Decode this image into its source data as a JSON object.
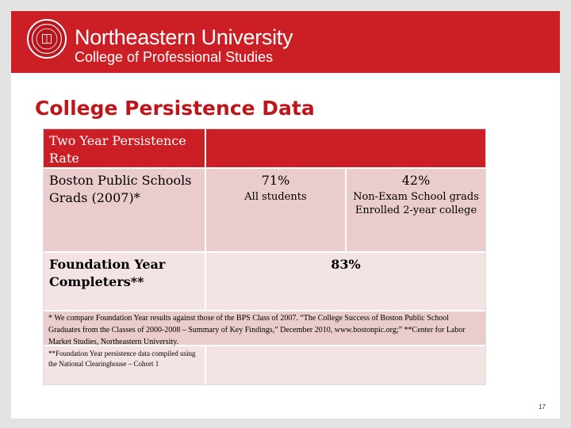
{
  "header": {
    "university": "Northeastern University",
    "college": "College of Professional Studies"
  },
  "title": "College Persistence Data",
  "table": {
    "header_label": "Two Year Persistence Rate",
    "row1": {
      "label": "Boston Public Schools Grads (2007)*",
      "col1_value": "71%",
      "col1_note": "All students",
      "col2_value": "42%",
      "col2_note": "Non-Exam School grads Enrolled 2-year college"
    },
    "row2": {
      "label": "Foundation Year Completers**",
      "value": "83%"
    },
    "footnote1": "* We compare Foundation Year results against those of the BPS Class of 2007. “The College Success of Boston Public School Graduates from the Classes of 2000-2008 – Summary of Key Findings,” December 2010, www.bostonpic.org;” **Center for Labor Market Studies, Northeastern University.",
    "footnote2": "**Foundation Year persistence data compiled using the National Clearinghouse – Cohort 1"
  },
  "page_number": "17",
  "colors": {
    "brand_red": "#cc1f25",
    "title_red": "#c0161b",
    "row_pink": "#ebcccc",
    "row_light": "#f3e3e3"
  }
}
